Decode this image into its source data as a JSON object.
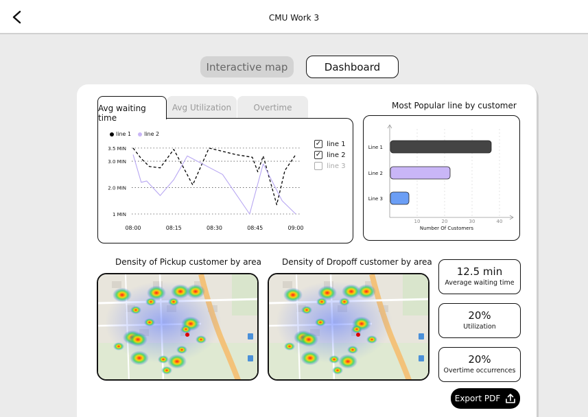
{
  "header": {
    "title": "CMU Work 3",
    "back_icon": "chevron-left-icon"
  },
  "segmented": {
    "map_label": "Interactive map",
    "dashboard_label": "Dashboard",
    "active": "dashboard"
  },
  "tabs": [
    {
      "label": "Avg waiting time",
      "active": true
    },
    {
      "label": "Avg Utilization",
      "active": false
    },
    {
      "label": "Overtime",
      "active": false
    }
  ],
  "line_legend": [
    "line 1",
    "line 2"
  ],
  "line_toggles": [
    {
      "label": "line 1",
      "checked": true
    },
    {
      "label": "line 2",
      "checked": true
    },
    {
      "label": "line 3",
      "checked": false
    }
  ],
  "bar_title": "Most Popular line by customer",
  "map_titles": {
    "pickup": "Density of Pickup customer by area",
    "dropoff": "Density of Dropoff customer by area"
  },
  "stats": [
    {
      "value": "12.5 min",
      "label": "Average waiting time"
    },
    {
      "value": "20%",
      "label": "Utilization"
    },
    {
      "value": "20%",
      "label": "Overtime occurrences"
    }
  ],
  "export": {
    "label": "Export PDF",
    "icon": "upload-icon"
  },
  "colors": {
    "line1": "#000000",
    "line2": "#b7a6f2",
    "bar1": "#444444",
    "bar2": "#c9b6f7",
    "bar3": "#6b9ef5"
  },
  "chart_data": [
    {
      "type": "line",
      "x": [
        "08:00",
        "08:05",
        "08:10",
        "08:15",
        "08:20",
        "08:25",
        "08:30",
        "08:35",
        "08:40",
        "08:45",
        "08:50",
        "08:55",
        "09:00"
      ],
      "x_tick_labels": [
        "08:00",
        "08:15",
        "08:30",
        "08:45",
        "09:00"
      ],
      "y_tick_labels": [
        "1 MIN",
        "2.0 MIN",
        "3.0 MIN",
        "3.5 MIN"
      ],
      "ylim": [
        1,
        3.6
      ],
      "grid": true,
      "series": [
        {
          "name": "line 1",
          "style": "dashed",
          "x": [
            "08:00",
            "08:03",
            "08:06",
            "08:10",
            "08:15",
            "08:22",
            "08:28",
            "08:38",
            "08:44",
            "08:46",
            "08:48",
            "08:53",
            "08:56",
            "09:00"
          ],
          "values": [
            3.5,
            3.1,
            2.8,
            2.75,
            3.45,
            2.1,
            3.5,
            3.25,
            3.15,
            2.6,
            3.2,
            1.35,
            2.65,
            3.25
          ]
        },
        {
          "name": "line 2",
          "style": "solid",
          "x": [
            "08:00",
            "08:03",
            "08:05",
            "08:10",
            "08:15",
            "08:20",
            "08:33",
            "08:43",
            "08:48",
            "08:55",
            "09:00"
          ],
          "values": [
            3.25,
            2.2,
            2.25,
            1.7,
            2.3,
            3.2,
            2.5,
            1.0,
            2.9,
            1.5,
            1.0
          ]
        }
      ]
    },
    {
      "type": "bar",
      "orientation": "horizontal",
      "categories": [
        "Line 1",
        "Line 2",
        "Line 3"
      ],
      "values": [
        37,
        22,
        7
      ],
      "xlabel": "Number Of Customers",
      "x_tick_labels": [
        "10",
        "20",
        "30",
        "40"
      ],
      "xlim": [
        0,
        45
      ]
    }
  ]
}
